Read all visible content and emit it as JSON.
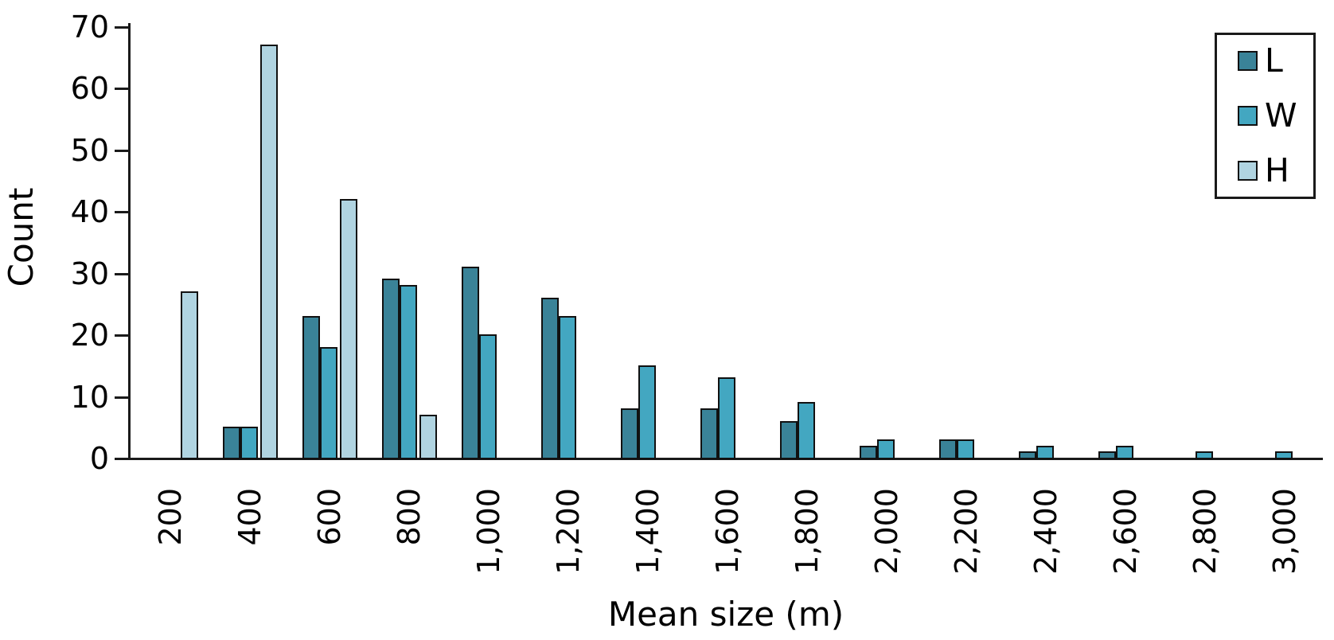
{
  "chart_data": {
    "type": "bar",
    "title": "",
    "xlabel": "Mean size (m)",
    "ylabel": "Count",
    "categories": [
      "200",
      "400",
      "600",
      "800",
      "1,000",
      "1,200",
      "1,400",
      "1,600",
      "1,800",
      "2,000",
      "2,200",
      "2,400",
      "2,600",
      "2,800",
      "3,000"
    ],
    "series": [
      {
        "name": "L",
        "color": "#3a8398",
        "values": [
          null,
          5,
          23,
          29,
          31,
          26,
          8,
          8,
          6,
          2,
          3,
          1,
          1,
          null,
          null
        ]
      },
      {
        "name": "W",
        "color": "#43a7c1",
        "values": [
          null,
          5,
          18,
          28,
          20,
          23,
          15,
          13,
          9,
          3,
          3,
          2,
          2,
          1,
          1
        ]
      },
      {
        "name": "H",
        "color": "#b0d4e1",
        "values": [
          27,
          67,
          42,
          7,
          null,
          null,
          null,
          null,
          null,
          null,
          null,
          null,
          null,
          null,
          null
        ]
      }
    ],
    "yticks": [
      0,
      10,
      20,
      30,
      40,
      50,
      60,
      70
    ],
    "ylim": [
      0,
      70
    ],
    "grid": false,
    "legend_position": "upper right",
    "legend_entries": [
      "L",
      "W",
      "H"
    ]
  },
  "colors": {
    "axis": "#1a1a1a",
    "bar_outline": "#111111",
    "background": "#ffffff"
  }
}
